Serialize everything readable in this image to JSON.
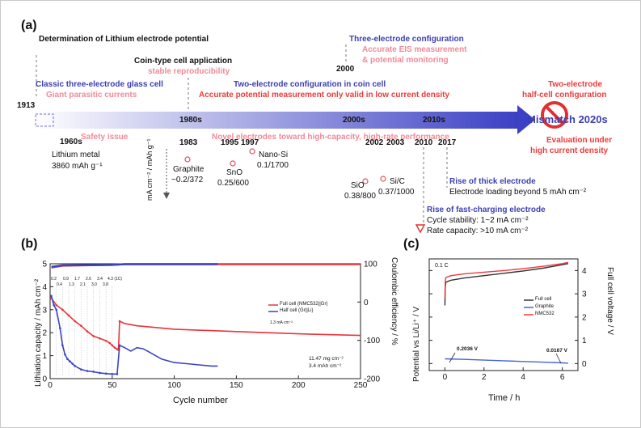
{
  "panel_a": {
    "label": "(a)",
    "year_1913": "1913",
    "lithium_potential_title": "Determination of Lithium electrode potential",
    "glass_cell_title": "Classic three-electrode glass cell",
    "glass_cell_issue": "Giant parasitic currents",
    "coin_cell_title": "Coin-type cell application",
    "coin_cell_note": "stable reproducibility",
    "year_2000": "2000",
    "three_electrode_title": "Three-electrode configuration",
    "three_electrode_note1": "Accurate EIS measurement",
    "three_electrode_note2": "& potential monitoring",
    "two_electrode_title": "Two-electrode configuration in coin cell",
    "two_electrode_note": "Accurate potential measurement only valid in low current density",
    "half_cell_title1": "Two-electrode",
    "half_cell_title2": "half-cell configuration",
    "era_1980s": "1980s",
    "era_2000s": "2000s",
    "era_2010s": "2010s",
    "mismatch_label": "Mismatch 2020s",
    "safety_issue": "Safety issue",
    "novel_electrodes": "Novel electrodes toward high-capacity, high-rate performance",
    "evaluation_note1": "Evaluation under",
    "evaluation_note2": "high current density",
    "year_1960s": "1960s",
    "li_metal_name": "Lithium metal",
    "li_metal_capacity": "3860 mAh g⁻¹",
    "year_1983": "1983",
    "year_1995": "1995",
    "year_1997": "1997",
    "graphite_name": "Graphite",
    "graphite_values": "~0.2/372",
    "sno_name": "SnO",
    "sno_values": "0.25/600",
    "nanosi_name": "Nano-Si",
    "nanosi_values": "0.1/1700",
    "units_label": "mA cm⁻² / mAh g⁻¹",
    "year_2002": "2002",
    "year_2003": "2003",
    "year_2010": "2010",
    "year_2017": "2017",
    "sio_name": "SiO",
    "sio_values": "0.38/800",
    "sic_name": "Si/C",
    "sic_values": "0.37/1000",
    "thick_title": "Rise of thick electrode",
    "thick_note": "Electrode loading beyond 5 mAh cm⁻²",
    "fast_title": "Rise of fast-charging electrode",
    "fast_note1": "Cycle stability: 1~2 mA cm⁻²",
    "fast_note2": "Rate capacity: >10 mA cm⁻²",
    "colors": {
      "blue": "#3b3fb0",
      "pink": "#f08a96",
      "red": "#ee3a3a",
      "arrow": "#4a4fc8"
    }
  },
  "panel_b": {
    "label": "(b)",
    "ylabel_left": "Lithiation capacity / mAh cm⁻²",
    "ylabel_right": "Coulombic efficiency / %",
    "xlabel": "Cycle number",
    "x_ticks": [
      "0",
      "50",
      "100",
      "150",
      "200",
      "250"
    ],
    "y_left_ticks": [
      "0",
      "1",
      "2",
      "3",
      "4",
      "5"
    ],
    "y_right_ticks": [
      "100",
      "0",
      "-100",
      "-200"
    ],
    "rate_labels_top": [
      "0.2",
      "0.9",
      "1.7",
      "2.6",
      "3.4",
      "4.3 (1C)"
    ],
    "rate_labels_bottom": [
      "0.4",
      "1.3",
      "2.1",
      "3.0",
      "3.8"
    ],
    "rate_unit": "1.3 mA cm⁻²",
    "legend": [
      "Full cell (NMC532||Gr)",
      "Half cell (Gr||Li)"
    ],
    "loading_note1": "11.47 mg cm⁻²",
    "loading_note2": "3.4 mAh cm⁻²"
  },
  "panel_c": {
    "label": "(c)",
    "rate": "0.1 C",
    "ylabel_left": "Potential vs Li/Li⁺ / V",
    "ylabel_right": "Full cell voltage / V",
    "xlabel": "Time / h",
    "x_ticks": [
      "0",
      "2",
      "4",
      "6"
    ],
    "y_ticks": [
      "0",
      "1",
      "2",
      "3",
      "4"
    ],
    "legend": [
      "Full cell",
      "Graphite",
      "NMC532"
    ],
    "annot_start": "0.2036 V",
    "annot_end": "0.0167 V"
  },
  "chart_data": [
    {
      "type": "line",
      "panel": "(b)",
      "xlabel": "Cycle number",
      "ylabel": "Lithiation capacity / mAh cm⁻²",
      "ylabel_right": "Coulombic efficiency / %",
      "xlim": [
        0,
        250
      ],
      "ylim": [
        0,
        5
      ],
      "ylim_right": [
        -200,
        100
      ],
      "legend_position": "right",
      "series": [
        {
          "name": "Full cell (NMC532||Gr)",
          "color": "#e8343c",
          "x": [
            1,
            5,
            10,
            15,
            20,
            25,
            30,
            35,
            40,
            45,
            48,
            50,
            52,
            54,
            55,
            56,
            60,
            70,
            80,
            100,
            150,
            200,
            250
          ],
          "y": [
            3.5,
            3.2,
            3.0,
            2.75,
            2.5,
            2.3,
            2.05,
            1.85,
            1.75,
            1.65,
            1.55,
            1.45,
            1.35,
            1.28,
            1.25,
            2.5,
            2.4,
            2.3,
            2.25,
            2.15,
            2.05,
            1.95,
            1.88
          ]
        },
        {
          "name": "Half cell (Gr||Li)",
          "color": "#3a43c4",
          "x": [
            1,
            3,
            5,
            8,
            10,
            12,
            14,
            16,
            18,
            20,
            25,
            30,
            35,
            40,
            45,
            50,
            54,
            56,
            60,
            65,
            70,
            75,
            80,
            90,
            100,
            110,
            120,
            130,
            135
          ],
          "y": [
            3.6,
            3.2,
            3.0,
            2.2,
            1.45,
            1.05,
            0.85,
            0.75,
            0.65,
            0.55,
            0.4,
            0.33,
            0.3,
            0.25,
            0.22,
            0.2,
            0.2,
            1.45,
            1.35,
            1.2,
            1.35,
            1.3,
            1.15,
            0.85,
            0.7,
            0.65,
            0.6,
            0.55,
            0.55
          ]
        },
        {
          "name": "Full cell CE",
          "color": "#e8343c",
          "axis": "right",
          "x": [
            1,
            10,
            50,
            60,
            100,
            150,
            200,
            250
          ],
          "y": [
            90,
            95,
            97,
            99,
            99,
            99,
            99,
            99
          ]
        },
        {
          "name": "Half cell CE",
          "color": "#3a43c4",
          "axis": "right",
          "x": [
            1,
            10,
            50,
            60,
            100,
            135
          ],
          "y": [
            92,
            96,
            97,
            99,
            99,
            99
          ]
        }
      ]
    },
    {
      "type": "line",
      "panel": "(c)",
      "xlabel": "Time / h",
      "ylabel": "Potential vs Li/Li⁺ / V",
      "ylabel_right": "Full cell voltage / V",
      "xlim": [
        -0.8,
        6.8
      ],
      "ylim": [
        -0.3,
        4.5
      ],
      "legend_position": "center-right",
      "series": [
        {
          "name": "Full cell",
          "color": "#333333",
          "x": [
            0.0,
            0.02,
            0.05,
            0.3,
            1,
            2,
            3,
            4,
            5,
            6,
            6.3
          ],
          "y": [
            2.5,
            3.3,
            3.5,
            3.58,
            3.68,
            3.78,
            3.88,
            3.98,
            4.1,
            4.25,
            4.3
          ]
        },
        {
          "name": "NMC532",
          "color": "#ee3a3a",
          "x": [
            0.0,
            0.02,
            0.05,
            0.3,
            1,
            2,
            3,
            4,
            5,
            6,
            6.3
          ],
          "y": [
            2.8,
            3.55,
            3.7,
            3.78,
            3.86,
            3.93,
            4.0,
            4.08,
            4.18,
            4.3,
            4.35
          ]
        },
        {
          "name": "Graphite",
          "color": "#4a62d8",
          "x": [
            0.0,
            1,
            2,
            3,
            4,
            5,
            6,
            6.3
          ],
          "y": [
            0.2036,
            0.18,
            0.15,
            0.12,
            0.09,
            0.06,
            0.03,
            0.0167
          ]
        }
      ]
    }
  ]
}
